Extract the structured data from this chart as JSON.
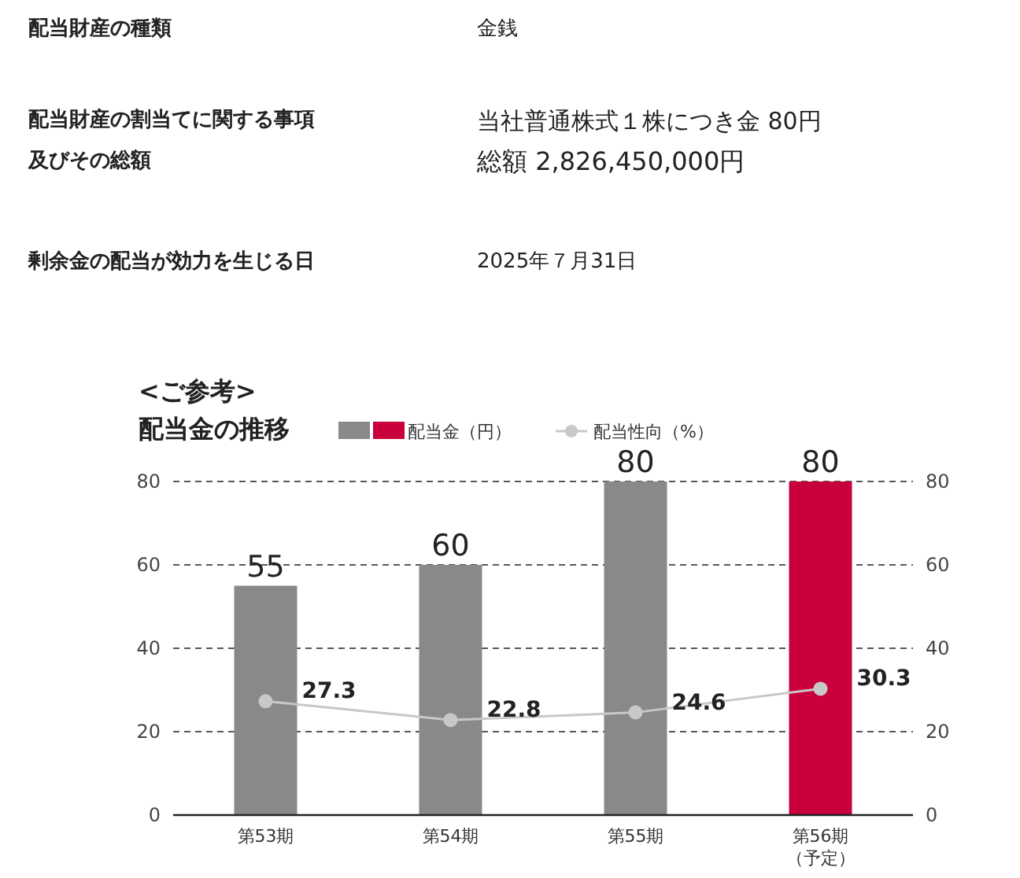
{
  "chart_data": {
    "type": "bar",
    "subtitle": "<ご参考>",
    "title": "配当金の推移",
    "categories": [
      "第53期",
      "第54期",
      "第55期",
      "第56期（予定）"
    ],
    "series": [
      {
        "name": "配当金（円）",
        "colors": [
          "#898989",
          "#898989",
          "#898989",
          "#c8003c"
        ],
        "values": [
          55,
          60,
          80,
          80
        ]
      },
      {
        "name": "配当性向（%）",
        "type": "line",
        "axis": "y2",
        "color": "#c8c8c8",
        "marker": "circle",
        "values": [
          27.3,
          22.8,
          24.6,
          30.3
        ]
      }
    ],
    "ylim": [
      0,
      80
    ],
    "yticks": [
      0,
      20,
      40,
      60,
      80
    ],
    "y2lim": [
      0,
      80
    ],
    "y2ticks": [
      0,
      20,
      40,
      60,
      80
    ],
    "grid": "y",
    "legend": "top",
    "data_labels": true,
    "annotations": [
      "配当財産の種類",
      "金銭",
      "配当財産の割当てに関する事項及びその総額",
      "当社普通株式１株につき金 80円",
      "総額 2,826,450,000円",
      "剰余金の配当が効力を生じる日",
      "2025年７月31日"
    ]
  }
}
